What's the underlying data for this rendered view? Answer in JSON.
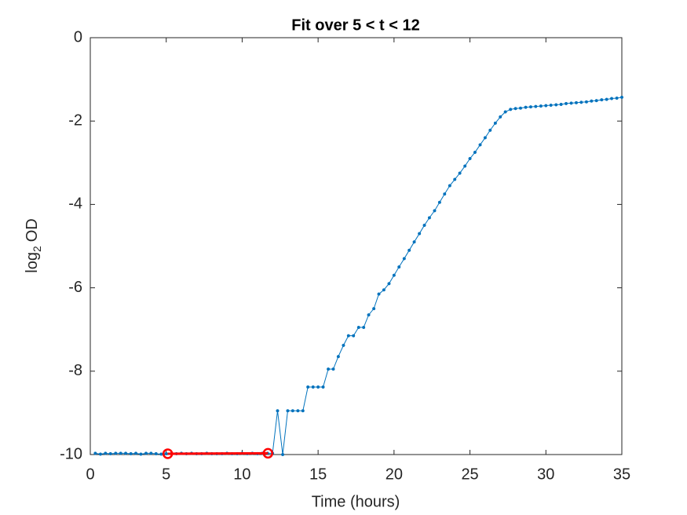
{
  "chart_data": {
    "type": "line",
    "title": "Fit over 5 < t < 12",
    "xlabel": "Time (hours)",
    "ylabel_parts": [
      "log",
      "2",
      "OD"
    ],
    "xlim": [
      0,
      35
    ],
    "ylim": [
      -10,
      0
    ],
    "xticks": [
      0,
      5,
      10,
      15,
      20,
      25,
      30,
      35
    ],
    "yticks": [
      -10,
      -8,
      -6,
      -4,
      -2,
      0
    ],
    "x": [
      0.33,
      0.67,
      1,
      1.33,
      1.67,
      2,
      2.33,
      2.67,
      3,
      3.33,
      3.67,
      4,
      4.33,
      4.67,
      5,
      5.33,
      5.67,
      6,
      6.33,
      6.67,
      7,
      7.33,
      7.67,
      8,
      8.33,
      8.67,
      9,
      9.33,
      9.67,
      10,
      10.33,
      10.67,
      11,
      11.33,
      11.67,
      12,
      12.33,
      12.67,
      13,
      13.33,
      13.67,
      14,
      14.33,
      14.67,
      15,
      15.33,
      15.67,
      16,
      16.33,
      16.67,
      17,
      17.33,
      17.67,
      18,
      18.33,
      18.67,
      19,
      19.33,
      19.67,
      20,
      20.33,
      20.67,
      21,
      21.33,
      21.67,
      22,
      22.33,
      22.67,
      23,
      23.33,
      23.67,
      24,
      24.33,
      24.67,
      25,
      25.33,
      25.67,
      26,
      26.33,
      26.67,
      27,
      27.33,
      27.67,
      28,
      28.33,
      28.67,
      29,
      29.33,
      29.67,
      30,
      30.33,
      30.67,
      31,
      31.33,
      31.67,
      32,
      32.33,
      32.67,
      33,
      33.33,
      33.67,
      34,
      34.33,
      34.67,
      35
    ],
    "series": [
      {
        "color": "#0072bd",
        "marker": "dot",
        "values": [
          -9.97,
          -9.99,
          -9.97,
          -9.98,
          -9.97,
          -9.97,
          -9.97,
          -9.98,
          -9.97,
          -9.99,
          -9.97,
          -9.97,
          -9.98,
          -9.99,
          -9.98,
          -9.98,
          -9.98,
          -9.97,
          -9.98,
          -9.97,
          -9.98,
          -9.98,
          -9.97,
          -9.98,
          -9.98,
          -9.98,
          -9.97,
          -9.98,
          -9.98,
          -9.97,
          -9.98,
          -9.97,
          -9.98,
          -9.97,
          -9.97,
          -9.97,
          -8.95,
          -10,
          -8.95,
          -8.95,
          -8.95,
          -8.95,
          -8.38,
          -8.38,
          -8.38,
          -8.38,
          -7.95,
          -7.95,
          -7.65,
          -7.38,
          -7.15,
          -7.15,
          -6.95,
          -6.95,
          -6.65,
          -6.5,
          -6.15,
          -6.05,
          -5.9,
          -5.7,
          -5.5,
          -5.3,
          -5.1,
          -4.9,
          -4.7,
          -4.5,
          -4.32,
          -4.15,
          -3.95,
          -3.75,
          -3.55,
          -3.4,
          -3.25,
          -3.08,
          -2.9,
          -2.75,
          -2.57,
          -2.4,
          -2.22,
          -2.05,
          -1.9,
          -1.78,
          -1.72,
          -1.7,
          -1.69,
          -1.67,
          -1.66,
          -1.65,
          -1.64,
          -1.63,
          -1.62,
          -1.61,
          -1.6,
          -1.58,
          -1.57,
          -1.56,
          -1.55,
          -1.54,
          -1.52,
          -1.51,
          -1.49,
          -1.48,
          -1.46,
          -1.45,
          -1.43
        ]
      },
      {
        "color": "#ff0000",
        "marker": "circle",
        "x": [
          5.1,
          11.7
        ],
        "values": [
          -9.98,
          -9.97
        ]
      }
    ]
  }
}
